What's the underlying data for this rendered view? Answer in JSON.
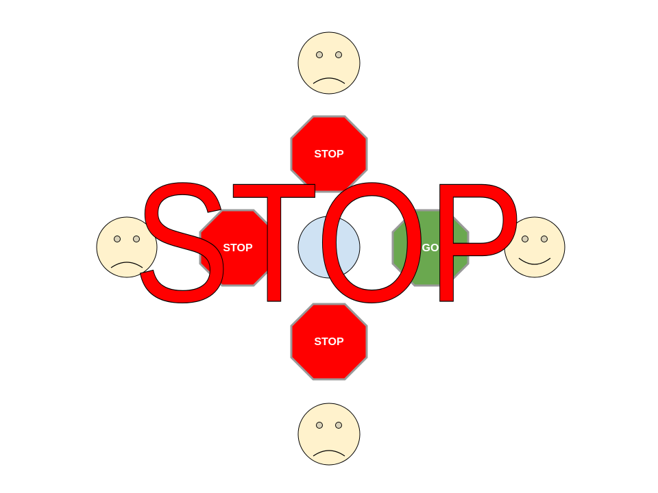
{
  "signs": {
    "north": {
      "label": "STOP",
      "state": "stop"
    },
    "west": {
      "label": "STOP",
      "state": "stop"
    },
    "south": {
      "label": "STOP",
      "state": "stop"
    },
    "east": {
      "label": "GO",
      "state": "go"
    }
  },
  "faces": {
    "north": {
      "mood": "sad"
    },
    "west": {
      "mood": "sad"
    },
    "south": {
      "mood": "sad"
    },
    "east": {
      "mood": "happy"
    }
  },
  "overlay": {
    "text": "STOP"
  },
  "colors": {
    "stop": "#ff0000",
    "go": "#6aa84f",
    "sign_border": "#999999",
    "face": "#fff2cc",
    "center": "#cfe2f3",
    "outline": "#000000",
    "overlay_text": "#ff0000"
  }
}
